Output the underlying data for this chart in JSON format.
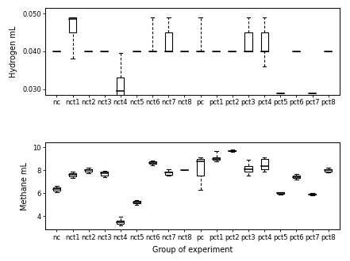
{
  "categories": [
    "nc",
    "nct1",
    "nct2",
    "nct3",
    "nct4",
    "nct5",
    "nct6",
    "nct7",
    "nct8",
    "pc",
    "pct1",
    "pct2",
    "pct3",
    "pct4",
    "pct5",
    "pct6",
    "pct7",
    "pct8"
  ],
  "hydrogen": {
    "ylabel": "Hydrogen mL",
    "ylim": [
      0.0285,
      0.0515
    ],
    "yticks": [
      0.03,
      0.04,
      0.05
    ],
    "yticklabels": [
      "0.030",
      "0.040",
      "0.050"
    ],
    "boxes": [
      {
        "med": 0.04,
        "q1": 0.04,
        "q3": 0.04,
        "whislo": 0.04,
        "whishi": 0.04
      },
      {
        "med": 0.0485,
        "q1": 0.045,
        "q3": 0.049,
        "whislo": 0.038,
        "whishi": 0.049
      },
      {
        "med": 0.04,
        "q1": 0.04,
        "q3": 0.04,
        "whislo": 0.04,
        "whishi": 0.04
      },
      {
        "med": 0.04,
        "q1": 0.04,
        "q3": 0.04,
        "whislo": 0.04,
        "whishi": 0.04
      },
      {
        "med": 0.0295,
        "q1": 0.028,
        "q3": 0.033,
        "whislo": 0.0275,
        "whishi": 0.0395
      },
      {
        "med": 0.04,
        "q1": 0.04,
        "q3": 0.04,
        "whislo": 0.04,
        "whishi": 0.04
      },
      {
        "med": 0.04,
        "q1": 0.04,
        "q3": 0.04,
        "whislo": 0.04,
        "whishi": 0.049
      },
      {
        "med": 0.04,
        "q1": 0.04,
        "q3": 0.045,
        "whislo": 0.04,
        "whishi": 0.049
      },
      {
        "med": 0.04,
        "q1": 0.04,
        "q3": 0.04,
        "whislo": 0.04,
        "whishi": 0.04
      },
      {
        "med": 0.04,
        "q1": 0.04,
        "q3": 0.04,
        "whislo": 0.04,
        "whishi": 0.049
      },
      {
        "med": 0.04,
        "q1": 0.04,
        "q3": 0.04,
        "whislo": 0.04,
        "whishi": 0.04
      },
      {
        "med": 0.04,
        "q1": 0.04,
        "q3": 0.04,
        "whislo": 0.04,
        "whishi": 0.04
      },
      {
        "med": 0.04,
        "q1": 0.04,
        "q3": 0.045,
        "whislo": 0.04,
        "whishi": 0.049
      },
      {
        "med": 0.04,
        "q1": 0.04,
        "q3": 0.045,
        "whislo": 0.036,
        "whishi": 0.049
      },
      {
        "med": 0.029,
        "q1": 0.029,
        "q3": 0.029,
        "whislo": 0.029,
        "whishi": 0.029
      },
      {
        "med": 0.04,
        "q1": 0.04,
        "q3": 0.04,
        "whislo": 0.04,
        "whishi": 0.04
      },
      {
        "med": 0.029,
        "q1": 0.029,
        "q3": 0.029,
        "whislo": 0.029,
        "whishi": 0.029
      },
      {
        "med": 0.04,
        "q1": 0.04,
        "q3": 0.04,
        "whislo": 0.04,
        "whishi": 0.04
      }
    ]
  },
  "methane": {
    "ylabel": "Methane mL",
    "xlabel": "Group of experiment",
    "ylim": [
      2.8,
      10.4
    ],
    "yticks": [
      4,
      6,
      8,
      10
    ],
    "yticklabels": [
      "4",
      "6",
      "8",
      "10"
    ],
    "boxes": [
      {
        "med": 6.35,
        "q1": 6.2,
        "q3": 6.5,
        "whislo": 6.1,
        "whishi": 6.65
      },
      {
        "med": 7.6,
        "q1": 7.45,
        "q3": 7.75,
        "whislo": 7.3,
        "whishi": 7.85
      },
      {
        "med": 8.0,
        "q1": 7.85,
        "q3": 8.1,
        "whislo": 7.7,
        "whishi": 8.2
      },
      {
        "med": 7.7,
        "q1": 7.55,
        "q3": 7.85,
        "whislo": 7.4,
        "whishi": 7.95
      },
      {
        "med": 3.45,
        "q1": 3.3,
        "q3": 3.6,
        "whislo": 3.2,
        "whishi": 3.95
      },
      {
        "med": 5.2,
        "q1": 5.1,
        "q3": 5.3,
        "whislo": 5.0,
        "whishi": 5.35
      },
      {
        "med": 8.65,
        "q1": 8.55,
        "q3": 8.75,
        "whislo": 8.45,
        "whishi": 8.85
      },
      {
        "med": 7.8,
        "q1": 7.6,
        "q3": 7.9,
        "whislo": 7.5,
        "whishi": 8.1
      },
      {
        "med": 8.0,
        "q1": 8.0,
        "q3": 8.0,
        "whislo": 8.0,
        "whishi": 8.0
      },
      {
        "med": 8.8,
        "q1": 7.5,
        "q3": 9.0,
        "whislo": 6.3,
        "whishi": 9.1
      },
      {
        "med": 9.0,
        "q1": 8.9,
        "q3": 9.1,
        "whislo": 8.8,
        "whishi": 9.7
      },
      {
        "med": 9.7,
        "q1": 9.65,
        "q3": 9.75,
        "whislo": 9.6,
        "whishi": 9.8
      },
      {
        "med": 8.1,
        "q1": 7.85,
        "q3": 8.35,
        "whislo": 7.5,
        "whishi": 8.9
      },
      {
        "med": 8.35,
        "q1": 8.1,
        "q3": 9.0,
        "whislo": 7.85,
        "whishi": 9.1
      },
      {
        "med": 6.0,
        "q1": 5.95,
        "q3": 6.05,
        "whislo": 5.9,
        "whishi": 6.1
      },
      {
        "med": 7.4,
        "q1": 7.3,
        "q3": 7.55,
        "whislo": 7.2,
        "whishi": 7.65
      },
      {
        "med": 5.9,
        "q1": 5.85,
        "q3": 5.95,
        "whislo": 5.8,
        "whishi": 6.0
      },
      {
        "med": 8.0,
        "q1": 7.9,
        "q3": 8.1,
        "whislo": 7.8,
        "whishi": 8.2
      }
    ]
  },
  "box_color": "#ffffff",
  "median_color": "#000000",
  "whisker_color": "#000000",
  "cap_color": "#000000",
  "background_color": "#ffffff",
  "font_size": 6.5
}
